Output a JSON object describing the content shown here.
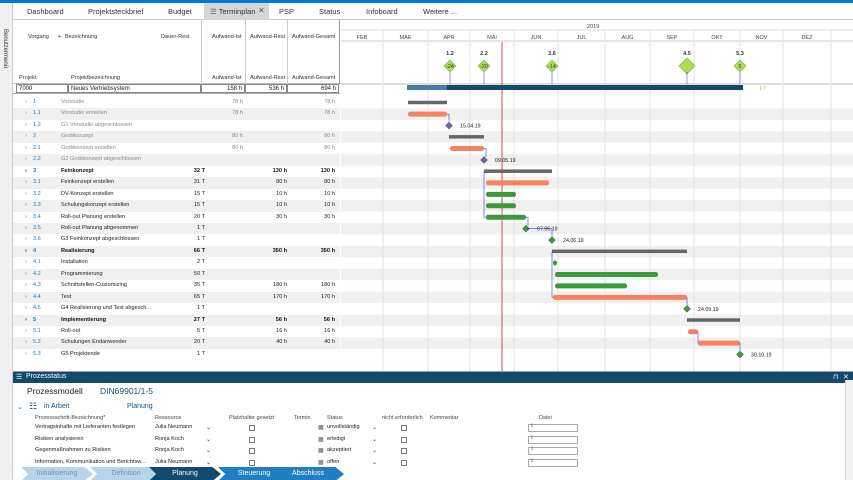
{
  "sidebar_label": "Benutzermenü",
  "tabs": [
    {
      "label": "Dashboard",
      "active": false
    },
    {
      "label": "Projektsteckbrief",
      "active": false
    },
    {
      "label": "Budget",
      "active": false
    },
    {
      "label": "Terminplan",
      "active": true
    },
    {
      "label": "PSP",
      "active": false
    },
    {
      "label": "Status",
      "active": false
    },
    {
      "label": "Infoboard",
      "active": false
    },
    {
      "label": "Weitere ...",
      "active": false
    }
  ],
  "close_glyph": "✕",
  "header": {
    "vorgang": "Vorgang",
    "plus": "+",
    "bezeichnung": "Bezeichnung",
    "dauer": "Dauer-Rest",
    "ai": "Aufwand-Ist",
    "ar": "Aufwand-Rest",
    "ag": "Aufwand-Gesamt",
    "projekt": "Projekt",
    "projektbez": "Projektbezeichnung"
  },
  "project": {
    "id": "7000",
    "name": "Neues Vertriebsystem",
    "ai": "158 h",
    "ar": "536 h",
    "ag": "694 h"
  },
  "rows": [
    {
      "exp": "›",
      "num": "1",
      "name": "Vorstudie",
      "dur": "",
      "ai": "78 h",
      "ar": "",
      "ag": "78 h",
      "style": "grey"
    },
    {
      "exp": "›",
      "num": "1.1",
      "name": "Vorstudie erstellen",
      "dur": "",
      "ai": "78 h",
      "ar": "",
      "ag": "78 h",
      "style": "grey"
    },
    {
      "exp": "›",
      "num": "1.2",
      "name": "G1 Vorstudie abgeschlossen",
      "dur": "",
      "ai": "",
      "ar": "",
      "ag": "",
      "style": "grey"
    },
    {
      "exp": "›",
      "num": "2",
      "name": "Grobkonzept",
      "dur": "",
      "ai": "80 h",
      "ar": "",
      "ag": "80 h",
      "style": "grey"
    },
    {
      "exp": "›",
      "num": "2.1",
      "name": "Grobkonzept erstellen",
      "dur": "",
      "ai": "80 h",
      "ar": "",
      "ag": "80 h",
      "style": "grey"
    },
    {
      "exp": "›",
      "num": "2.2",
      "name": "G2 Grobkonzept abgeschlossen",
      "dur": "",
      "ai": "",
      "ar": "",
      "ag": "",
      "style": "grey"
    },
    {
      "exp": "›",
      "num": "3",
      "name": "Feinkonzept",
      "dur": "32 T",
      "ai": "",
      "ar": "130 h",
      "ag": "130 h",
      "style": "bold"
    },
    {
      "exp": "›",
      "num": "3.1",
      "name": "Feinkonzept erstellen",
      "dur": "31 T",
      "ai": "",
      "ar": "80 h",
      "ag": "80 h",
      "style": "normal"
    },
    {
      "exp": "›",
      "num": "3.2",
      "name": "DV-Konzept erstellen",
      "dur": "15 T",
      "ai": "",
      "ar": "10 h",
      "ag": "10 h",
      "style": "normal"
    },
    {
      "exp": "›",
      "num": "3.3",
      "name": "Schulungskonzept erstellen",
      "dur": "15 T",
      "ai": "",
      "ar": "10 h",
      "ag": "10 h",
      "style": "normal"
    },
    {
      "exp": "›",
      "num": "3.4",
      "name": "Roll-out Planung erstellen",
      "dur": "20 T",
      "ai": "",
      "ar": "30 h",
      "ag": "30 h",
      "style": "normal"
    },
    {
      "exp": "›",
      "num": "3.5",
      "name": "Roll-out Planung abgenommen",
      "dur": "1 T",
      "ai": "",
      "ar": "",
      "ag": "",
      "style": "normal"
    },
    {
      "exp": "›",
      "num": "3.6",
      "name": "G3 Feinkonzept abgeschlossen",
      "dur": "1 T",
      "ai": "",
      "ar": "",
      "ag": "",
      "style": "normal"
    },
    {
      "exp": "›",
      "num": "4",
      "name": "Realisierung",
      "dur": "66 T",
      "ai": "",
      "ar": "350 h",
      "ag": "350 h",
      "style": "bold"
    },
    {
      "exp": "›",
      "num": "4.1",
      "name": "Installation",
      "dur": "2 T",
      "ai": "",
      "ar": "",
      "ag": "",
      "style": "normal"
    },
    {
      "exp": "›",
      "num": "4.2",
      "name": "Programmierung",
      "dur": "50 T",
      "ai": "",
      "ar": "",
      "ag": "",
      "style": "normal"
    },
    {
      "exp": "›",
      "num": "4.3",
      "name": "Schnittstellen-Customizing",
      "dur": "35 T",
      "ai": "",
      "ar": "180 h",
      "ag": "180 h",
      "style": "normal"
    },
    {
      "exp": "›",
      "num": "4.4",
      "name": "Test",
      "dur": "65 T",
      "ai": "",
      "ar": "170 h",
      "ag": "170 h",
      "style": "normal"
    },
    {
      "exp": "›",
      "num": "4.5",
      "name": "G4 Realisierung und Test abgesch...",
      "dur": "1 T",
      "ai": "",
      "ar": "",
      "ag": "",
      "style": "normal"
    },
    {
      "exp": "›",
      "num": "5",
      "name": "Implementierung",
      "dur": "27 T",
      "ai": "",
      "ar": "56 h",
      "ag": "56 h",
      "style": "bold"
    },
    {
      "exp": "›",
      "num": "5.1",
      "name": "Roll-out",
      "dur": "5 T",
      "ai": "",
      "ar": "16 h",
      "ag": "16 h",
      "style": "normal"
    },
    {
      "exp": "›",
      "num": "5.2",
      "name": "Schulungen Endanwender",
      "dur": "20 T",
      "ai": "",
      "ar": "40 h",
      "ag": "40 h",
      "style": "normal"
    },
    {
      "exp": "›",
      "num": "5.3",
      "name": "G5 Projektende",
      "dur": "1 T",
      "ai": "",
      "ar": "",
      "ag": "",
      "style": "normal"
    }
  ],
  "row_expander_4_1": "›",
  "gantt": {
    "year": "2019",
    "months": [
      "FEB",
      "MAE",
      "APR",
      "MAI",
      "JUN",
      "JUL",
      "AUG",
      "SEP",
      "OKT",
      "NOV",
      "DEZ"
    ],
    "milestone_top": [
      {
        "label": "1.2",
        "value": "-24"
      },
      {
        "label": "2.2",
        "value": "-20"
      },
      {
        "label": "3.6",
        "value": "-14"
      },
      {
        "label": "4.5",
        "value": ""
      },
      {
        "label": "5.3",
        "value": "5"
      }
    ],
    "project_bar_label": "1 T",
    "dates": [
      "15.04.19",
      "09.05.19",
      "07.06.19",
      "24.06.19",
      "24.09.19",
      "30.10.19"
    ]
  },
  "prozess": {
    "title": "Prozesstatus",
    "pin": "⊓",
    "close": "✕",
    "modell_label": "Prozessmodell",
    "modell_value": "DIN69901/1-5",
    "arbeit_label": "in Arbeit",
    "planung_label": "Planung",
    "cols": {
      "schritt": "Prozessschritt-Bezeichnung*",
      "ressource": "Ressource",
      "platzhalter": "Platzhalter gesetzt",
      "termin": "Termin",
      "status": "Status",
      "nicht": "nicht erforderlich",
      "kommentar": "Kommentar",
      "datei": "Datei"
    },
    "rows": [
      {
        "schritt": "Vertragsinhalte mit Lieferanten festlegen",
        "ressource": "Julia Neumann",
        "status": "unvollständig"
      },
      {
        "schritt": "Risiken analysieren",
        "ressource": "Ronja Koch",
        "status": "erledigt"
      },
      {
        "schritt": "Gegenmaßnahmen zu Risiken",
        "ressource": "Ronja Koch",
        "status": "akzeptiert"
      },
      {
        "schritt": "Information, Kommunikation und Berichtsw...",
        "ressource": "Julia Neumann",
        "status": "offen"
      }
    ],
    "phases": [
      "Initialisierung",
      "Definition",
      "Planung",
      "Steuerung",
      "Abschluss"
    ]
  },
  "colors": {
    "accent": "#0078d4",
    "navy": "#12496e",
    "green": "#3d9a3a",
    "salmon": "#f4845f",
    "milestone": "#aadd55",
    "summary": "#666666",
    "today": "#cc2222"
  }
}
